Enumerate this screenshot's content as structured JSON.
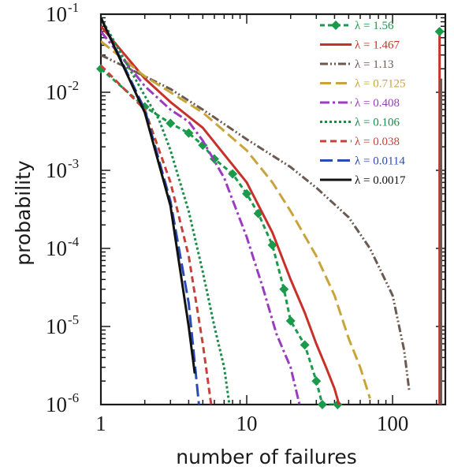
{
  "chart_data": {
    "type": "line",
    "xlabel": "number of failures",
    "ylabel": "probability",
    "xscale": "log",
    "yscale": "log",
    "xlim": [
      1,
      230
    ],
    "ylim": [
      1e-06,
      0.1
    ],
    "xticks": [
      {
        "value": 1,
        "label": "1"
      },
      {
        "value": 10,
        "label": "10"
      },
      {
        "value": 100,
        "label": "100"
      }
    ],
    "yticks": [
      {
        "value": 0.1,
        "base": "10",
        "exp": "-1"
      },
      {
        "value": 0.01,
        "base": "10",
        "exp": "-2"
      },
      {
        "value": 0.001,
        "base": "10",
        "exp": "-3"
      },
      {
        "value": 0.0001,
        "base": "10",
        "exp": "-4"
      },
      {
        "value": 1e-05,
        "base": "10",
        "exp": "-5"
      },
      {
        "value": 1e-06,
        "base": "10",
        "exp": "-6"
      }
    ],
    "grid": false,
    "legend_position": "top-right",
    "series": [
      {
        "name": "λ = 1.56",
        "color": "#1a9a4a",
        "dash": "6,4",
        "marker": "diamond",
        "x": [
          1,
          2,
          3,
          4,
          5,
          6,
          8,
          10,
          12,
          15,
          18,
          20,
          25,
          30,
          33,
          42
        ],
        "y": [
          0.02,
          0.0065,
          0.004,
          0.003,
          0.0021,
          0.0014,
          0.0009,
          0.0005,
          0.00028,
          0.00011,
          3e-05,
          1.18e-05,
          5.8e-06,
          2e-06,
          1e-06,
          1e-06
        ]
      },
      {
        "name": "λ = 1.467",
        "color": "#c8302a",
        "dash": "",
        "marker": "none",
        "x": [
          1,
          2,
          3,
          5,
          7,
          10,
          15,
          20,
          25,
          30,
          35,
          40,
          43
        ],
        "y": [
          0.07,
          0.015,
          0.0075,
          0.0035,
          0.0016,
          0.0007,
          0.00016,
          4e-05,
          1.5e-05,
          6e-06,
          3e-06,
          1.6e-06,
          1e-06
        ]
      },
      {
        "name": "λ = 1.13",
        "color": "#6b5a52",
        "dash": "10,3,2,3,2,3",
        "marker": "none",
        "x": [
          1,
          2,
          3,
          5,
          10,
          20,
          30,
          50,
          70,
          100,
          120,
          130
        ],
        "y": [
          0.03,
          0.016,
          0.011,
          0.006,
          0.0025,
          0.0011,
          0.0006,
          0.00025,
          0.0001,
          2.5e-05,
          5e-06,
          1.5e-06
        ]
      },
      {
        "name": "λ = 0.7125",
        "color": "#c9a43a",
        "dash": "14,6",
        "marker": "none",
        "x": [
          1,
          2,
          3,
          5,
          10,
          15,
          20,
          30,
          40,
          50,
          60,
          70
        ],
        "y": [
          0.045,
          0.016,
          0.01,
          0.0055,
          0.0018,
          0.0007,
          0.0003,
          8e-05,
          2.5e-05,
          7e-06,
          3e-06,
          1.2e-06
        ]
      },
      {
        "name": "λ = 0.408",
        "color": "#9b3bbf",
        "dash": "12,4,3,4",
        "marker": "none",
        "x": [
          1,
          2,
          3,
          4,
          5,
          7,
          10,
          13,
          16,
          20,
          23
        ],
        "y": [
          0.06,
          0.012,
          0.006,
          0.0042,
          0.0024,
          0.0008,
          0.00014,
          3e-05,
          8e-06,
          3e-06,
          1e-06
        ]
      },
      {
        "name": "λ = 0.106",
        "color": "#1a8c4a",
        "dash": "3,3",
        "marker": "none",
        "x": [
          1,
          2,
          2.5,
          3,
          4,
          5,
          6,
          7,
          7.6
        ],
        "y": [
          0.09,
          0.009,
          0.0045,
          0.0018,
          0.0003,
          5e-05,
          1e-05,
          3e-06,
          1e-06
        ]
      },
      {
        "name": "λ = 0.038",
        "color": "#c8403a",
        "dash": "8,5",
        "marker": "none",
        "x": [
          1,
          2,
          3,
          4,
          5,
          5.7
        ],
        "y": [
          0.022,
          0.006,
          0.0007,
          8e-05,
          6e-06,
          1e-06
        ]
      },
      {
        "name": "λ = 0.0114",
        "color": "#2a4ab4",
        "dash": "16,6",
        "marker": "none",
        "x": [
          1,
          2,
          3,
          4,
          4.7
        ],
        "y": [
          0.09,
          0.006,
          0.0004,
          2e-05,
          1e-06
        ]
      },
      {
        "name": "λ = 0.0017",
        "color": "#111111",
        "dash": "",
        "marker": "none",
        "x": [
          1,
          2,
          3,
          4,
          4.4
        ],
        "y": [
          0.09,
          0.0055,
          0.00035,
          1e-05,
          2.5e-06
        ]
      }
    ],
    "extra_vertical_lines": [
      {
        "x": 210,
        "y_top": 0.06,
        "color": "#c8302a"
      },
      {
        "x": 215,
        "y_top": 0.015,
        "color": "#6b5a52"
      }
    ]
  }
}
